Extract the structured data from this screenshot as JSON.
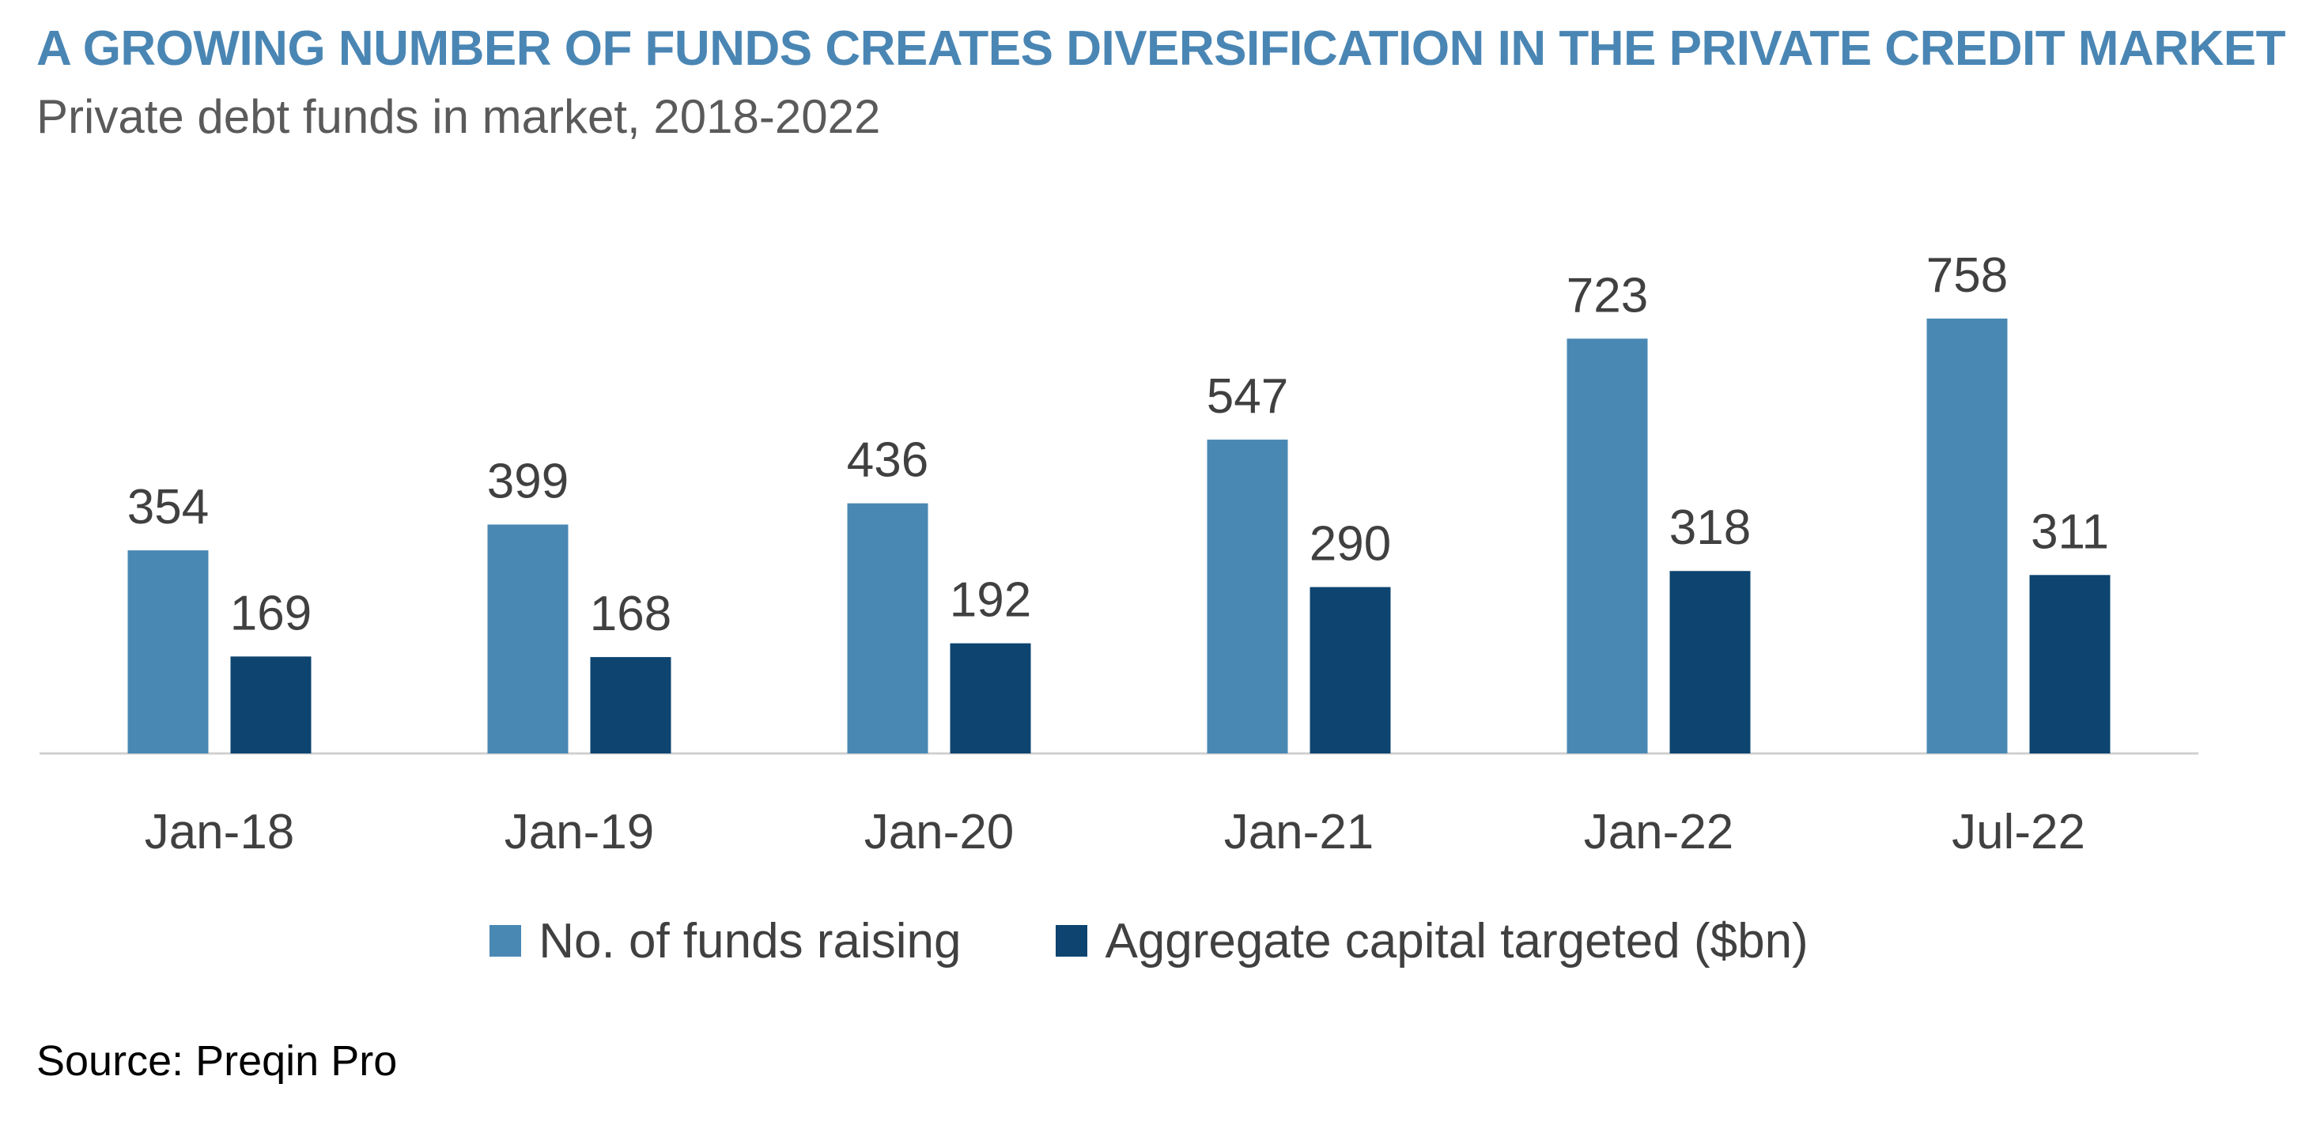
{
  "header": {
    "title": "A GROWING NUMBER OF FUNDS CREATES DIVERSIFICATION IN THE PRIVATE CREDIT MARKET",
    "subtitle": "Private debt funds in market, 2018-2022"
  },
  "footer": {
    "source": "Source: Preqin Pro"
  },
  "colors": {
    "title": "#4a86b4",
    "subtitle": "#5a5a5a",
    "text": "#404040",
    "axis": "#d0d0d0",
    "series_light": "#4a88b4",
    "series_dark": "#0d4470"
  },
  "chart_data": {
    "type": "bar",
    "title": "A GROWING NUMBER OF FUNDS CREATES DIVERSIFICATION IN THE PRIVATE CREDIT MARKET",
    "subtitle": "Private debt funds in market, 2018-2022",
    "categories": [
      "Jan-18",
      "Jan-19",
      "Jan-20",
      "Jan-21",
      "Jan-22",
      "Jul-22"
    ],
    "series": [
      {
        "name": "No. of funds raising",
        "values": [
          354,
          399,
          436,
          547,
          723,
          758
        ],
        "color": "#4a88b4"
      },
      {
        "name": "Aggregate capital targeted ($bn)",
        "values": [
          169,
          168,
          192,
          290,
          318,
          311
        ],
        "color": "#0d4470"
      }
    ],
    "xlabel": "",
    "ylabel": "",
    "ylim": [
      0,
      800
    ],
    "grid": false,
    "data_labels": true,
    "legend_position": "bottom"
  }
}
